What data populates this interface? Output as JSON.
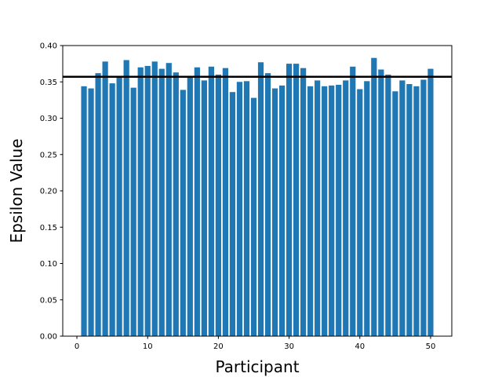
{
  "chart_data": {
    "type": "bar",
    "title": "",
    "xlabel": "Participant",
    "ylabel": "Epsilon Value",
    "x": [
      1,
      2,
      3,
      4,
      5,
      6,
      7,
      8,
      9,
      10,
      11,
      12,
      13,
      14,
      15,
      16,
      17,
      18,
      19,
      20,
      21,
      22,
      23,
      24,
      25,
      26,
      27,
      28,
      29,
      30,
      31,
      32,
      33,
      34,
      35,
      36,
      37,
      38,
      39,
      40,
      41,
      42,
      43,
      44,
      45,
      46,
      47,
      48,
      49,
      50
    ],
    "values": [
      0.344,
      0.341,
      0.362,
      0.378,
      0.348,
      0.357,
      0.38,
      0.342,
      0.37,
      0.372,
      0.378,
      0.368,
      0.376,
      0.363,
      0.339,
      0.356,
      0.37,
      0.352,
      0.371,
      0.36,
      0.369,
      0.336,
      0.35,
      0.351,
      0.328,
      0.377,
      0.362,
      0.341,
      0.345,
      0.375,
      0.375,
      0.369,
      0.344,
      0.352,
      0.344,
      0.345,
      0.346,
      0.352,
      0.371,
      0.34,
      0.351,
      0.383,
      0.367,
      0.36,
      0.337,
      0.352,
      0.347,
      0.344,
      0.353,
      0.368
    ],
    "reference_line": 0.357,
    "xlim": [
      -2,
      53
    ],
    "ylim": [
      0,
      0.4
    ],
    "xticks": [
      0,
      10,
      20,
      30,
      40,
      50
    ],
    "yticks": [
      0.0,
      0.05,
      0.1,
      0.15,
      0.2,
      0.25,
      0.3,
      0.35,
      0.4
    ],
    "ytick_labels": [
      "0.00",
      "0.05",
      "0.10",
      "0.15",
      "0.20",
      "0.25",
      "0.30",
      "0.35",
      "0.40"
    ],
    "xtick_labels": [
      "0",
      "10",
      "20",
      "30",
      "40",
      "50"
    ],
    "grid": false,
    "colors": {
      "bar": "#1f77b4",
      "reference_line": "#000000",
      "axes": "#000000"
    }
  }
}
